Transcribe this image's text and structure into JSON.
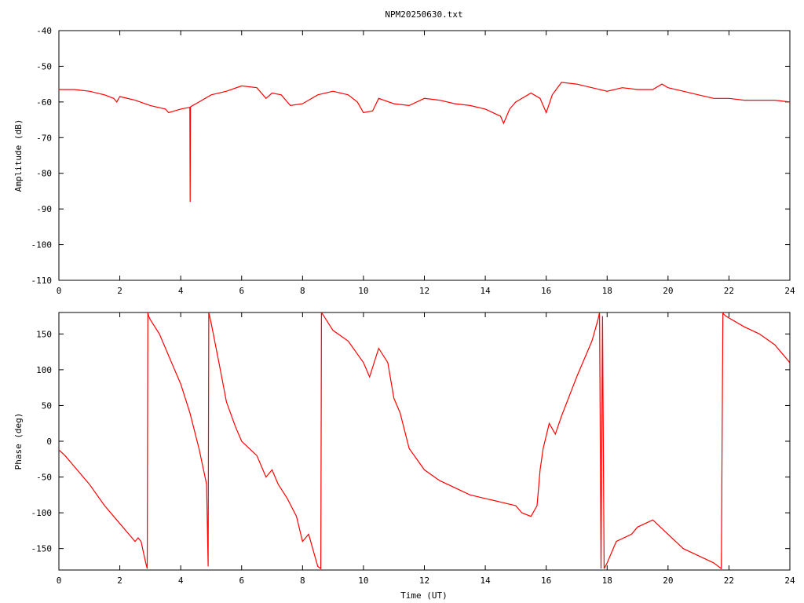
{
  "title": "NPM20250630.txt",
  "colors": {
    "series": "#ff0000",
    "axis": "#000000",
    "background": "#ffffff"
  },
  "chart_data": [
    {
      "type": "line",
      "title": "NPM20250630.txt",
      "xlabel": "",
      "ylabel": "Amplitude (dB)",
      "xlim": [
        0,
        24
      ],
      "ylim": [
        -110,
        -40
      ],
      "xticks": [
        "0",
        "2",
        "4",
        "6",
        "8",
        "10",
        "12",
        "14",
        "16",
        "18",
        "20",
        "22",
        "24"
      ],
      "yticks": [
        "-40",
        "-50",
        "-60",
        "-70",
        "-80",
        "-90",
        "-100",
        "-110"
      ],
      "grid": false,
      "series": [
        {
          "x": [
            0,
            0.5,
            1,
            1.5,
            1.8,
            1.9,
            2,
            2.5,
            3,
            3.5,
            3.6,
            4,
            4.3,
            4.31,
            4.32,
            4.33,
            4.6,
            5,
            5.5,
            6,
            6.5,
            6.8,
            7,
            7.3,
            7.6,
            8,
            8.5,
            9,
            9.5,
            9.8,
            10,
            10.3,
            10.5,
            11,
            11.5,
            12,
            12.5,
            13,
            13.5,
            14,
            14.5,
            14.6,
            14.8,
            15,
            15.5,
            15.8,
            16,
            16.2,
            16.5,
            17,
            17.5,
            18,
            18.5,
            19,
            19.5,
            19.8,
            20,
            20.5,
            21,
            21.5,
            22,
            22.5,
            23,
            23.5,
            24
          ],
          "y": [
            -56.5,
            -56.5,
            -57,
            -58,
            -59,
            -60,
            -58.5,
            -59.5,
            -61,
            -62,
            -63,
            -62,
            -61.5,
            -88,
            -61.5,
            -61.3,
            -60,
            -58,
            -57,
            -55.5,
            -56,
            -59,
            -57.5,
            -58,
            -61,
            -60.5,
            -58,
            -57,
            -58,
            -60,
            -63,
            -62.5,
            -59,
            -60.5,
            -61,
            -59,
            -59.5,
            -60.5,
            -61,
            -62,
            -64,
            -66,
            -62,
            -60,
            -57.5,
            -59,
            -63,
            -58,
            -54.5,
            -55,
            -56,
            -57,
            -56,
            -56.5,
            -56.5,
            -55,
            -56,
            -57,
            -58,
            -59,
            -59,
            -59.5,
            -59.5,
            -59.5,
            -60
          ]
        }
      ]
    },
    {
      "type": "line",
      "title": "",
      "xlabel": "Time (UT)",
      "ylabel": "Phase (deg)",
      "xlim": [
        0,
        24
      ],
      "ylim": [
        -180,
        180
      ],
      "xticks": [
        "0",
        "2",
        "4",
        "6",
        "8",
        "10",
        "12",
        "14",
        "16",
        "18",
        "20",
        "22",
        "24"
      ],
      "yticks": [
        "150",
        "100",
        "50",
        "0",
        "-50",
        "-100",
        "-150"
      ],
      "grid": false,
      "series": [
        {
          "x": [
            0,
            0.2,
            0.5,
            1,
            1.5,
            2,
            2.5,
            2.6,
            2.7,
            2.8,
            2.85,
            2.9,
            2.92,
            2.95,
            3,
            3.3,
            3.5,
            3.7,
            4,
            4.3,
            4.6,
            4.85,
            4.9,
            4.92,
            5,
            5.3,
            5.5,
            5.8,
            6,
            6.5,
            6.8,
            7,
            7.2,
            7.5,
            7.8,
            8,
            8.2,
            8.5,
            8.6,
            8.62,
            8.7,
            9,
            9.5,
            10,
            10.2,
            10.5,
            10.8,
            11,
            11.2,
            11.5,
            12,
            12.5,
            13,
            13.5,
            14,
            14.5,
            15,
            15.2,
            15.5,
            15.7,
            15.8,
            15.9,
            16.1,
            16.3,
            16.5,
            17,
            17.5,
            17.7,
            17.75,
            17.8,
            17.85,
            17.9,
            18,
            18.3,
            18.8,
            19,
            19.5,
            20,
            20.5,
            21,
            21.5,
            21.75,
            21.8,
            21.82,
            21.9,
            22.5,
            23,
            23.5,
            24
          ],
          "y": [
            -12,
            -20,
            -35,
            -60,
            -90,
            -115,
            -140,
            -135,
            -140,
            -160,
            -170,
            -178,
            180,
            175,
            170,
            150,
            130,
            110,
            80,
            40,
            -10,
            -60,
            -175,
            180,
            165,
            100,
            55,
            20,
            0,
            -20,
            -50,
            -40,
            -60,
            -80,
            -105,
            -140,
            -130,
            -175,
            -178,
            180,
            175,
            155,
            140,
            110,
            90,
            130,
            110,
            60,
            40,
            -10,
            -40,
            -55,
            -65,
            -75,
            -80,
            -85,
            -90,
            -100,
            -105,
            -90,
            -40,
            -10,
            25,
            10,
            35,
            90,
            140,
            170,
            180,
            -178,
            175,
            -178,
            -170,
            -140,
            -130,
            -120,
            -110,
            -130,
            -150,
            -160,
            -170,
            -178,
            180,
            178,
            175,
            160,
            150,
            135,
            110
          ]
        }
      ]
    }
  ]
}
